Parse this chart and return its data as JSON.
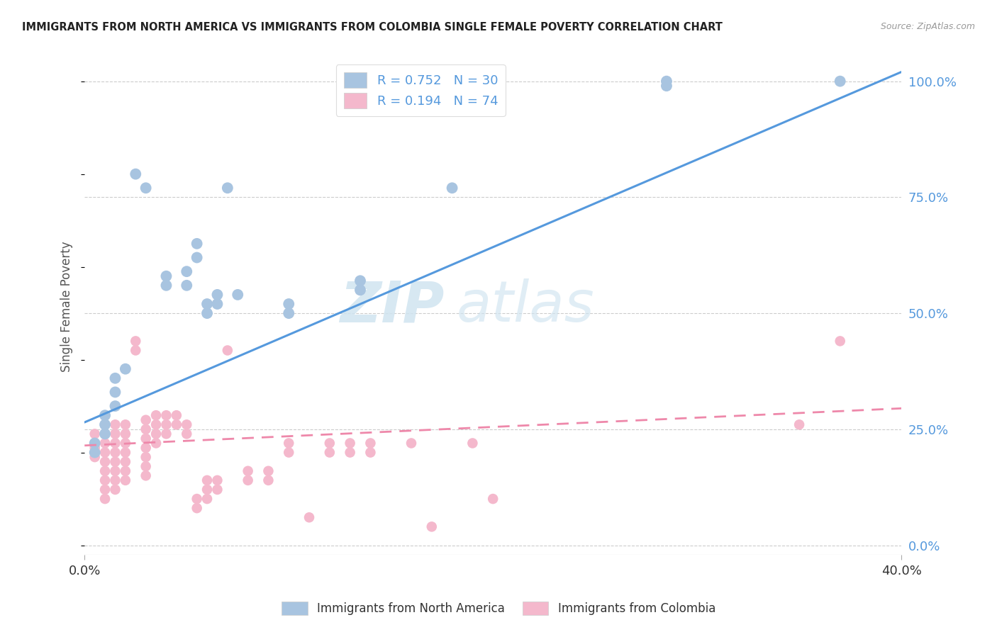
{
  "title": "IMMIGRANTS FROM NORTH AMERICA VS IMMIGRANTS FROM COLOMBIA SINGLE FEMALE POVERTY CORRELATION CHART",
  "source": "Source: ZipAtlas.com",
  "ylabel": "Single Female Poverty",
  "ytick_vals": [
    0.0,
    0.25,
    0.5,
    0.75,
    1.0
  ],
  "ytick_labels": [
    "0.0%",
    "25.0%",
    "50.0%",
    "75.0%",
    "100.0%"
  ],
  "blue_color": "#a8c4e0",
  "pink_color": "#f4b8cc",
  "blue_line_color": "#5599dd",
  "pink_line_color": "#ee88aa",
  "blue_scatter": [
    [
      0.005,
      0.2
    ],
    [
      0.005,
      0.22
    ],
    [
      0.01,
      0.24
    ],
    [
      0.01,
      0.26
    ],
    [
      0.01,
      0.28
    ],
    [
      0.015,
      0.3
    ],
    [
      0.015,
      0.33
    ],
    [
      0.015,
      0.36
    ],
    [
      0.02,
      0.38
    ],
    [
      0.025,
      0.8
    ],
    [
      0.03,
      0.77
    ],
    [
      0.04,
      0.56
    ],
    [
      0.04,
      0.58
    ],
    [
      0.05,
      0.56
    ],
    [
      0.05,
      0.59
    ],
    [
      0.055,
      0.62
    ],
    [
      0.055,
      0.65
    ],
    [
      0.06,
      0.5
    ],
    [
      0.06,
      0.52
    ],
    [
      0.065,
      0.52
    ],
    [
      0.065,
      0.54
    ],
    [
      0.07,
      0.77
    ],
    [
      0.075,
      0.54
    ],
    [
      0.1,
      0.5
    ],
    [
      0.1,
      0.52
    ],
    [
      0.135,
      0.55
    ],
    [
      0.135,
      0.57
    ],
    [
      0.18,
      0.77
    ],
    [
      0.285,
      0.99
    ],
    [
      0.285,
      1.0
    ],
    [
      0.37,
      1.0
    ]
  ],
  "pink_scatter": [
    [
      0.005,
      0.22
    ],
    [
      0.005,
      0.24
    ],
    [
      0.005,
      0.21
    ],
    [
      0.005,
      0.19
    ],
    [
      0.01,
      0.24
    ],
    [
      0.01,
      0.22
    ],
    [
      0.01,
      0.2
    ],
    [
      0.01,
      0.18
    ],
    [
      0.01,
      0.16
    ],
    [
      0.01,
      0.14
    ],
    [
      0.01,
      0.12
    ],
    [
      0.01,
      0.1
    ],
    [
      0.015,
      0.26
    ],
    [
      0.015,
      0.24
    ],
    [
      0.015,
      0.22
    ],
    [
      0.015,
      0.2
    ],
    [
      0.015,
      0.18
    ],
    [
      0.015,
      0.16
    ],
    [
      0.015,
      0.14
    ],
    [
      0.015,
      0.12
    ],
    [
      0.02,
      0.26
    ],
    [
      0.02,
      0.24
    ],
    [
      0.02,
      0.22
    ],
    [
      0.02,
      0.2
    ],
    [
      0.02,
      0.18
    ],
    [
      0.02,
      0.16
    ],
    [
      0.02,
      0.14
    ],
    [
      0.025,
      0.42
    ],
    [
      0.025,
      0.44
    ],
    [
      0.03,
      0.27
    ],
    [
      0.03,
      0.25
    ],
    [
      0.03,
      0.23
    ],
    [
      0.03,
      0.21
    ],
    [
      0.03,
      0.19
    ],
    [
      0.03,
      0.17
    ],
    [
      0.03,
      0.15
    ],
    [
      0.035,
      0.28
    ],
    [
      0.035,
      0.26
    ],
    [
      0.035,
      0.24
    ],
    [
      0.035,
      0.22
    ],
    [
      0.04,
      0.28
    ],
    [
      0.04,
      0.26
    ],
    [
      0.04,
      0.24
    ],
    [
      0.045,
      0.28
    ],
    [
      0.045,
      0.26
    ],
    [
      0.05,
      0.26
    ],
    [
      0.05,
      0.24
    ],
    [
      0.055,
      0.1
    ],
    [
      0.055,
      0.08
    ],
    [
      0.06,
      0.14
    ],
    [
      0.06,
      0.12
    ],
    [
      0.06,
      0.1
    ],
    [
      0.065,
      0.14
    ],
    [
      0.065,
      0.12
    ],
    [
      0.07,
      0.42
    ],
    [
      0.08,
      0.16
    ],
    [
      0.08,
      0.14
    ],
    [
      0.09,
      0.16
    ],
    [
      0.09,
      0.14
    ],
    [
      0.1,
      0.22
    ],
    [
      0.1,
      0.2
    ],
    [
      0.11,
      0.06
    ],
    [
      0.12,
      0.22
    ],
    [
      0.12,
      0.2
    ],
    [
      0.13,
      0.22
    ],
    [
      0.13,
      0.2
    ],
    [
      0.14,
      0.22
    ],
    [
      0.14,
      0.2
    ],
    [
      0.16,
      0.22
    ],
    [
      0.17,
      0.04
    ],
    [
      0.19,
      0.22
    ],
    [
      0.2,
      0.1
    ],
    [
      0.35,
      0.26
    ],
    [
      0.37,
      0.44
    ]
  ],
  "blue_trend_x": [
    0.0,
    0.4
  ],
  "blue_trend_y": [
    0.265,
    1.02
  ],
  "pink_trend_x": [
    0.0,
    0.4
  ],
  "pink_trend_y": [
    0.215,
    0.295
  ],
  "watermark_zip": "ZIP",
  "watermark_atlas": "atlas",
  "background_color": "#ffffff",
  "grid_color": "#cccccc",
  "xlim": [
    0.0,
    0.4
  ],
  "ylim": [
    -0.02,
    1.05
  ]
}
